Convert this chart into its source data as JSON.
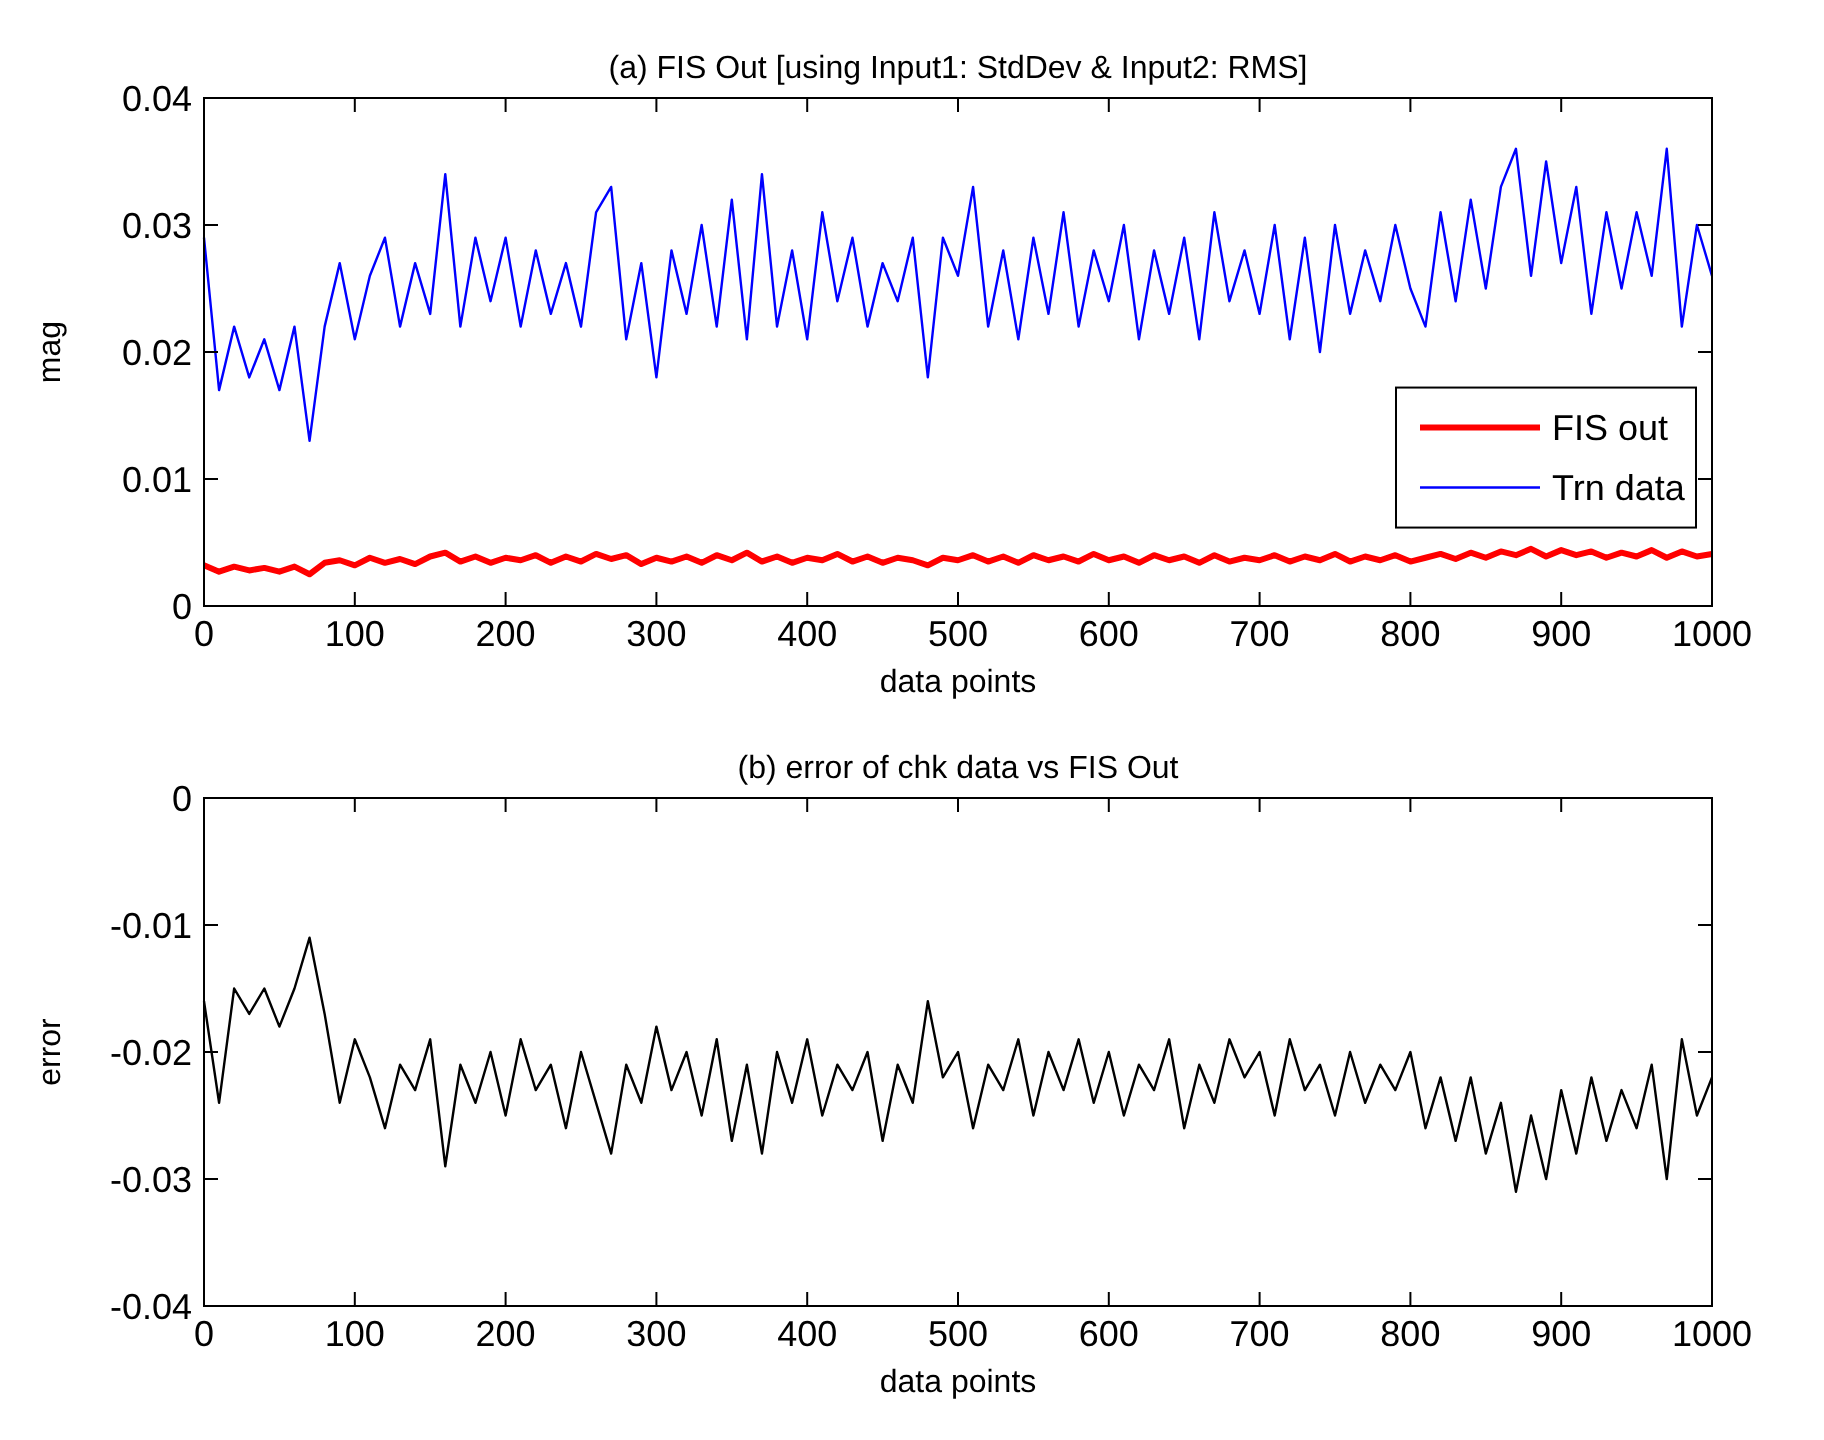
{
  "chart_data": [
    {
      "type": "line",
      "title": "(a) FIS Out [using Input1: StdDev & Input2: RMS]",
      "xlabel": "data points",
      "ylabel": "mag",
      "x": [
        0,
        10,
        20,
        30,
        40,
        50,
        60,
        70,
        80,
        90,
        100,
        110,
        120,
        130,
        140,
        150,
        160,
        170,
        180,
        190,
        200,
        210,
        220,
        230,
        240,
        250,
        260,
        270,
        280,
        290,
        300,
        310,
        320,
        330,
        340,
        350,
        360,
        370,
        380,
        390,
        400,
        410,
        420,
        430,
        440,
        450,
        460,
        470,
        480,
        490,
        500,
        510,
        520,
        530,
        540,
        550,
        560,
        570,
        580,
        590,
        600,
        610,
        620,
        630,
        640,
        650,
        660,
        670,
        680,
        690,
        700,
        710,
        720,
        730,
        740,
        750,
        760,
        770,
        780,
        790,
        800,
        810,
        820,
        830,
        840,
        850,
        860,
        870,
        880,
        890,
        900,
        910,
        920,
        930,
        940,
        950,
        960,
        970,
        980,
        990,
        1000
      ],
      "series": [
        {
          "name": "FIS out",
          "color": "#ff0000",
          "values": [
            0.0032,
            0.0027,
            0.0031,
            0.0028,
            0.003,
            0.0027,
            0.0031,
            0.0025,
            0.0034,
            0.0036,
            0.0032,
            0.0038,
            0.0034,
            0.0037,
            0.0033,
            0.0039,
            0.0042,
            0.0035,
            0.0039,
            0.0034,
            0.0038,
            0.0036,
            0.004,
            0.0034,
            0.0039,
            0.0035,
            0.0041,
            0.0037,
            0.004,
            0.0033,
            0.0038,
            0.0035,
            0.0039,
            0.0034,
            0.004,
            0.0036,
            0.0042,
            0.0035,
            0.0039,
            0.0034,
            0.0038,
            0.0036,
            0.0041,
            0.0035,
            0.0039,
            0.0034,
            0.0038,
            0.0036,
            0.0032,
            0.0038,
            0.0036,
            0.004,
            0.0035,
            0.0039,
            0.0034,
            0.004,
            0.0036,
            0.0039,
            0.0035,
            0.0041,
            0.0036,
            0.0039,
            0.0034,
            0.004,
            0.0036,
            0.0039,
            0.0034,
            0.004,
            0.0035,
            0.0038,
            0.0036,
            0.004,
            0.0035,
            0.0039,
            0.0036,
            0.0041,
            0.0035,
            0.0039,
            0.0036,
            0.004,
            0.0035,
            0.0038,
            0.0041,
            0.0037,
            0.0042,
            0.0038,
            0.0043,
            0.004,
            0.0045,
            0.0039,
            0.0044,
            0.004,
            0.0043,
            0.0038,
            0.0042,
            0.0039,
            0.0044,
            0.0038,
            0.0043,
            0.0039,
            0.0041
          ]
        },
        {
          "name": "Trn data",
          "color": "#0000ff",
          "values": [
            0.029,
            0.017,
            0.022,
            0.018,
            0.021,
            0.017,
            0.022,
            0.013,
            0.022,
            0.027,
            0.021,
            0.026,
            0.029,
            0.022,
            0.027,
            0.023,
            0.034,
            0.022,
            0.029,
            0.024,
            0.029,
            0.022,
            0.028,
            0.023,
            0.027,
            0.022,
            0.031,
            0.033,
            0.021,
            0.027,
            0.018,
            0.028,
            0.023,
            0.03,
            0.022,
            0.032,
            0.021,
            0.034,
            0.022,
            0.028,
            0.021,
            0.031,
            0.024,
            0.029,
            0.022,
            0.027,
            0.024,
            0.029,
            0.018,
            0.029,
            0.026,
            0.033,
            0.022,
            0.028,
            0.021,
            0.029,
            0.023,
            0.031,
            0.022,
            0.028,
            0.024,
            0.03,
            0.021,
            0.028,
            0.023,
            0.029,
            0.021,
            0.031,
            0.024,
            0.028,
            0.023,
            0.03,
            0.021,
            0.029,
            0.02,
            0.03,
            0.023,
            0.028,
            0.024,
            0.03,
            0.025,
            0.022,
            0.031,
            0.024,
            0.032,
            0.025,
            0.033,
            0.036,
            0.026,
            0.035,
            0.027,
            0.033,
            0.023,
            0.031,
            0.025,
            0.031,
            0.026,
            0.036,
            0.022,
            0.03,
            0.026
          ]
        }
      ],
      "xlim": [
        0,
        1000
      ],
      "xticks": [
        0,
        100,
        200,
        300,
        400,
        500,
        600,
        700,
        800,
        900,
        1000
      ],
      "ylim": [
        0,
        0.04
      ],
      "yticks": [
        0,
        0.01,
        0.02,
        0.03,
        0.04
      ],
      "legend": "right",
      "grid": false
    },
    {
      "type": "line",
      "title": "(b) error of chk data vs FIS Out",
      "xlabel": "data points",
      "ylabel": "error",
      "x": [
        0,
        10,
        20,
        30,
        40,
        50,
        60,
        70,
        80,
        90,
        100,
        110,
        120,
        130,
        140,
        150,
        160,
        170,
        180,
        190,
        200,
        210,
        220,
        230,
        240,
        250,
        260,
        270,
        280,
        290,
        300,
        310,
        320,
        330,
        340,
        350,
        360,
        370,
        380,
        390,
        400,
        410,
        420,
        430,
        440,
        450,
        460,
        470,
        480,
        490,
        500,
        510,
        520,
        530,
        540,
        550,
        560,
        570,
        580,
        590,
        600,
        610,
        620,
        630,
        640,
        650,
        660,
        670,
        680,
        690,
        700,
        710,
        720,
        730,
        740,
        750,
        760,
        770,
        780,
        790,
        800,
        810,
        820,
        830,
        840,
        850,
        860,
        870,
        880,
        890,
        900,
        910,
        920,
        930,
        940,
        950,
        960,
        970,
        980,
        990,
        1000
      ],
      "series": [
        {
          "color": "#000000",
          "values": [
            -0.016,
            -0.024,
            -0.015,
            -0.017,
            -0.015,
            -0.018,
            -0.015,
            -0.011,
            -0.017,
            -0.024,
            -0.019,
            -0.022,
            -0.026,
            -0.021,
            -0.023,
            -0.019,
            -0.029,
            -0.021,
            -0.024,
            -0.02,
            -0.025,
            -0.019,
            -0.023,
            -0.021,
            -0.026,
            -0.02,
            -0.024,
            -0.028,
            -0.021,
            -0.024,
            -0.018,
            -0.023,
            -0.02,
            -0.025,
            -0.019,
            -0.027,
            -0.021,
            -0.028,
            -0.02,
            -0.024,
            -0.019,
            -0.025,
            -0.021,
            -0.023,
            -0.02,
            -0.027,
            -0.021,
            -0.024,
            -0.016,
            -0.022,
            -0.02,
            -0.026,
            -0.021,
            -0.023,
            -0.019,
            -0.025,
            -0.02,
            -0.023,
            -0.019,
            -0.024,
            -0.02,
            -0.025,
            -0.021,
            -0.023,
            -0.019,
            -0.026,
            -0.021,
            -0.024,
            -0.019,
            -0.022,
            -0.02,
            -0.025,
            -0.019,
            -0.023,
            -0.021,
            -0.025,
            -0.02,
            -0.024,
            -0.021,
            -0.023,
            -0.02,
            -0.026,
            -0.022,
            -0.027,
            -0.022,
            -0.028,
            -0.024,
            -0.031,
            -0.025,
            -0.03,
            -0.023,
            -0.028,
            -0.022,
            -0.027,
            -0.023,
            -0.026,
            -0.021,
            -0.03,
            -0.019,
            -0.025,
            -0.022
          ]
        }
      ],
      "xlim": [
        0,
        1000
      ],
      "xticks": [
        0,
        100,
        200,
        300,
        400,
        500,
        600,
        700,
        800,
        900,
        1000
      ],
      "ylim": [
        -0.04,
        0
      ],
      "yticks": [
        -0.04,
        -0.03,
        -0.02,
        -0.01,
        0
      ],
      "grid": false
    }
  ]
}
